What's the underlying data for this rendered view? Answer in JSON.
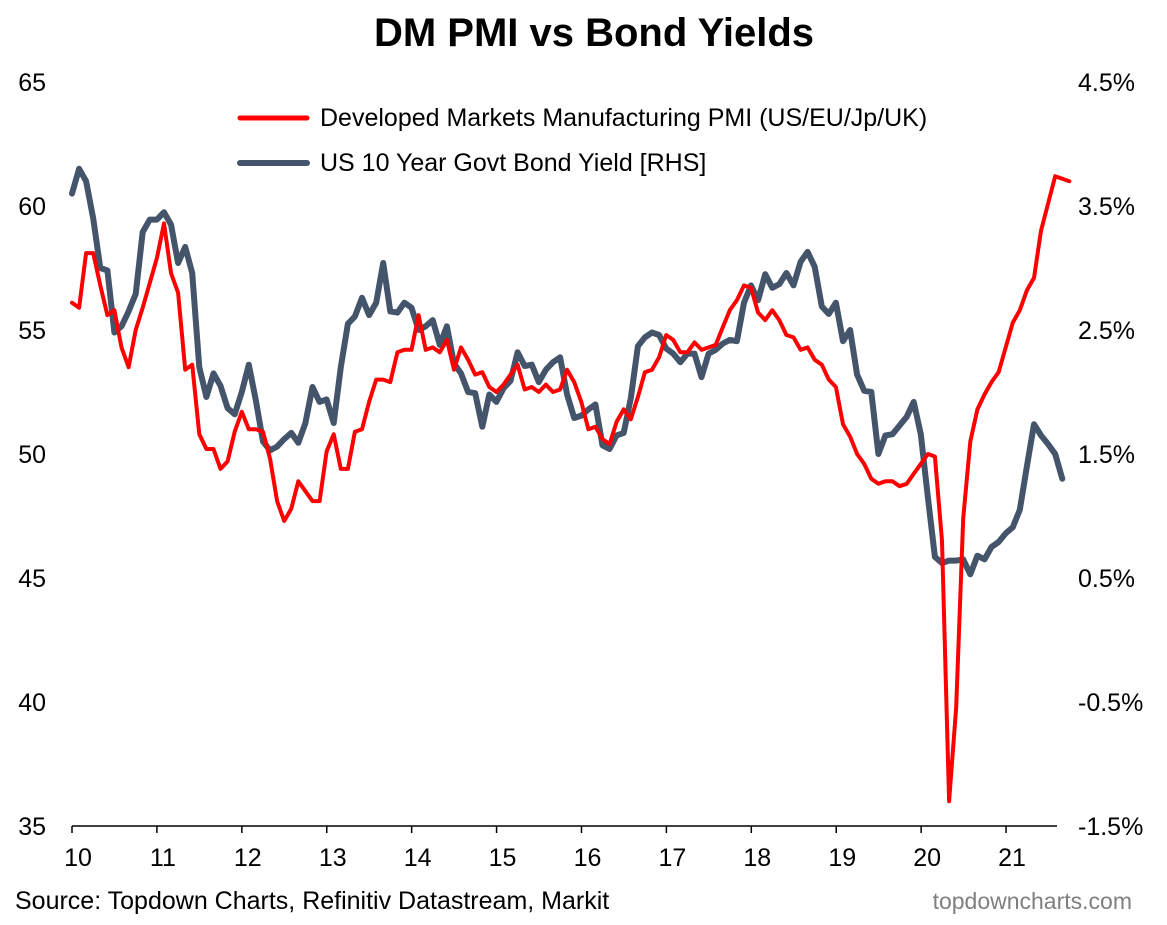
{
  "chart_data": {
    "type": "line",
    "title": "DM PMI vs Bond Yields",
    "source": "Source: Topdown Charts, Refinitiv Datastream, Markit",
    "brand": "topdowncharts.com",
    "x_start": 2010.0,
    "x_step": 0.0833,
    "x_ticks": [
      {
        "value": 10,
        "label": "10"
      },
      {
        "value": 11,
        "label": "11"
      },
      {
        "value": 12,
        "label": "12"
      },
      {
        "value": 13,
        "label": "13"
      },
      {
        "value": 14,
        "label": "14"
      },
      {
        "value": 15,
        "label": "15"
      },
      {
        "value": 16,
        "label": "16"
      },
      {
        "value": 17,
        "label": "17"
      },
      {
        "value": 18,
        "label": "18"
      },
      {
        "value": 19,
        "label": "19"
      },
      {
        "value": 20,
        "label": "20"
      },
      {
        "value": 21,
        "label": "21"
      }
    ],
    "xlim": [
      10,
      21.6
    ],
    "left_axis": {
      "ylim": [
        35,
        65
      ],
      "ticks": [
        {
          "value": 35,
          "label": "35"
        },
        {
          "value": 40,
          "label": "40"
        },
        {
          "value": 45,
          "label": "45"
        },
        {
          "value": 50,
          "label": "50"
        },
        {
          "value": 55,
          "label": "55"
        },
        {
          "value": 60,
          "label": "60"
        },
        {
          "value": 65,
          "label": "65"
        }
      ]
    },
    "right_axis": {
      "ylim": [
        -1.5,
        4.5
      ],
      "ticks": [
        {
          "value": -1.5,
          "label": "-1.5%"
        },
        {
          "value": -0.5,
          "label": "-0.5%"
        },
        {
          "value": 0.5,
          "label": "0.5%"
        },
        {
          "value": 1.5,
          "label": "1.5%"
        },
        {
          "value": 2.5,
          "label": "2.5%"
        },
        {
          "value": 3.5,
          "label": "3.5%"
        },
        {
          "value": 4.5,
          "label": "4.5%"
        }
      ]
    },
    "series": [
      {
        "name": "Developed Markets Manufacturing PMI (US/EU/Jp/UK)",
        "axis": "left",
        "color": "#ff0000",
        "values": [
          56.1,
          55.9,
          58.1,
          58.1,
          56.8,
          55.6,
          55.8,
          54.3,
          53.5,
          55.0,
          55.9,
          56.9,
          57.9,
          59.3,
          57.3,
          56.5,
          53.4,
          53.6,
          50.8,
          50.2,
          50.2,
          49.4,
          49.7,
          50.9,
          51.7,
          51.0,
          51.0,
          50.9,
          49.8,
          48.1,
          47.3,
          47.8,
          48.9,
          48.5,
          48.1,
          48.1,
          50.1,
          50.8,
          49.4,
          49.4,
          50.9,
          51.0,
          52.1,
          53.0,
          53.0,
          52.9,
          54.1,
          54.2,
          54.2,
          55.6,
          54.2,
          54.3,
          54.1,
          54.6,
          53.4,
          54.3,
          53.8,
          53.2,
          53.3,
          52.7,
          52.5,
          52.8,
          53.2,
          53.6,
          52.6,
          52.7,
          52.5,
          52.8,
          52.5,
          52.6,
          53.4,
          52.9,
          52.1,
          51.0,
          51.1,
          50.6,
          50.4,
          51.3,
          51.8,
          51.4,
          52.3,
          53.3,
          53.4,
          53.9,
          54.8,
          54.6,
          54.1,
          54.1,
          54.5,
          54.2,
          54.3,
          54.4,
          55.1,
          55.8,
          56.2,
          56.8,
          56.7,
          55.7,
          55.4,
          55.8,
          55.4,
          54.8,
          54.7,
          54.2,
          54.3,
          53.8,
          53.6,
          53.0,
          52.7,
          51.2,
          50.7,
          50.0,
          49.6,
          49.0,
          48.8,
          48.9,
          48.9,
          48.7,
          48.8,
          49.2,
          49.6,
          50.0,
          49.9,
          46.5,
          36.0,
          39.8,
          47.4,
          50.5,
          51.8,
          52.4,
          52.9,
          53.3,
          54.3,
          55.3,
          55.8,
          56.6,
          57.1,
          59.0,
          60.1,
          61.2,
          61.1,
          61.0
        ]
      },
      {
        "name": "US 10 Year Govt Bond Yield [RHS]",
        "axis": "right",
        "color": "#44546a",
        "values": [
          3.6,
          3.8,
          3.7,
          3.4,
          3.0,
          2.98,
          2.48,
          2.53,
          2.65,
          2.79,
          3.29,
          3.39,
          3.39,
          3.45,
          3.35,
          3.04,
          3.17,
          2.96,
          2.2,
          1.96,
          2.15,
          2.05,
          1.87,
          1.82,
          2.0,
          2.22,
          1.93,
          1.6,
          1.53,
          1.56,
          1.62,
          1.67,
          1.59,
          1.75,
          2.04,
          1.92,
          1.94,
          1.75,
          2.2,
          2.55,
          2.61,
          2.76,
          2.62,
          2.72,
          3.04,
          2.65,
          2.64,
          2.72,
          2.68,
          2.5,
          2.53,
          2.58,
          2.38,
          2.53,
          2.23,
          2.15,
          2.0,
          1.99,
          1.72,
          1.98,
          1.92,
          2.03,
          2.09,
          2.32,
          2.21,
          2.22,
          2.08,
          2.18,
          2.24,
          2.28,
          1.98,
          1.79,
          1.81,
          1.86,
          1.9,
          1.57,
          1.54,
          1.65,
          1.67,
          1.95,
          2.37,
          2.44,
          2.48,
          2.46,
          2.35,
          2.31,
          2.24,
          2.31,
          2.31,
          2.12,
          2.31,
          2.34,
          2.39,
          2.42,
          2.41,
          2.72,
          2.86,
          2.74,
          2.95,
          2.84,
          2.87,
          2.96,
          2.86,
          3.05,
          3.13,
          3.01,
          2.69,
          2.63,
          2.72,
          2.41,
          2.5,
          2.14,
          2.01,
          2.0,
          1.5,
          1.65,
          1.66,
          1.73,
          1.8,
          1.92,
          1.66,
          1.15,
          0.67,
          0.62,
          0.64,
          0.64,
          0.65,
          0.53,
          0.68,
          0.65,
          0.75,
          0.79,
          0.86,
          0.91,
          1.05,
          1.4,
          1.74,
          1.65,
          1.58,
          1.5,
          1.3
        ]
      }
    ]
  }
}
